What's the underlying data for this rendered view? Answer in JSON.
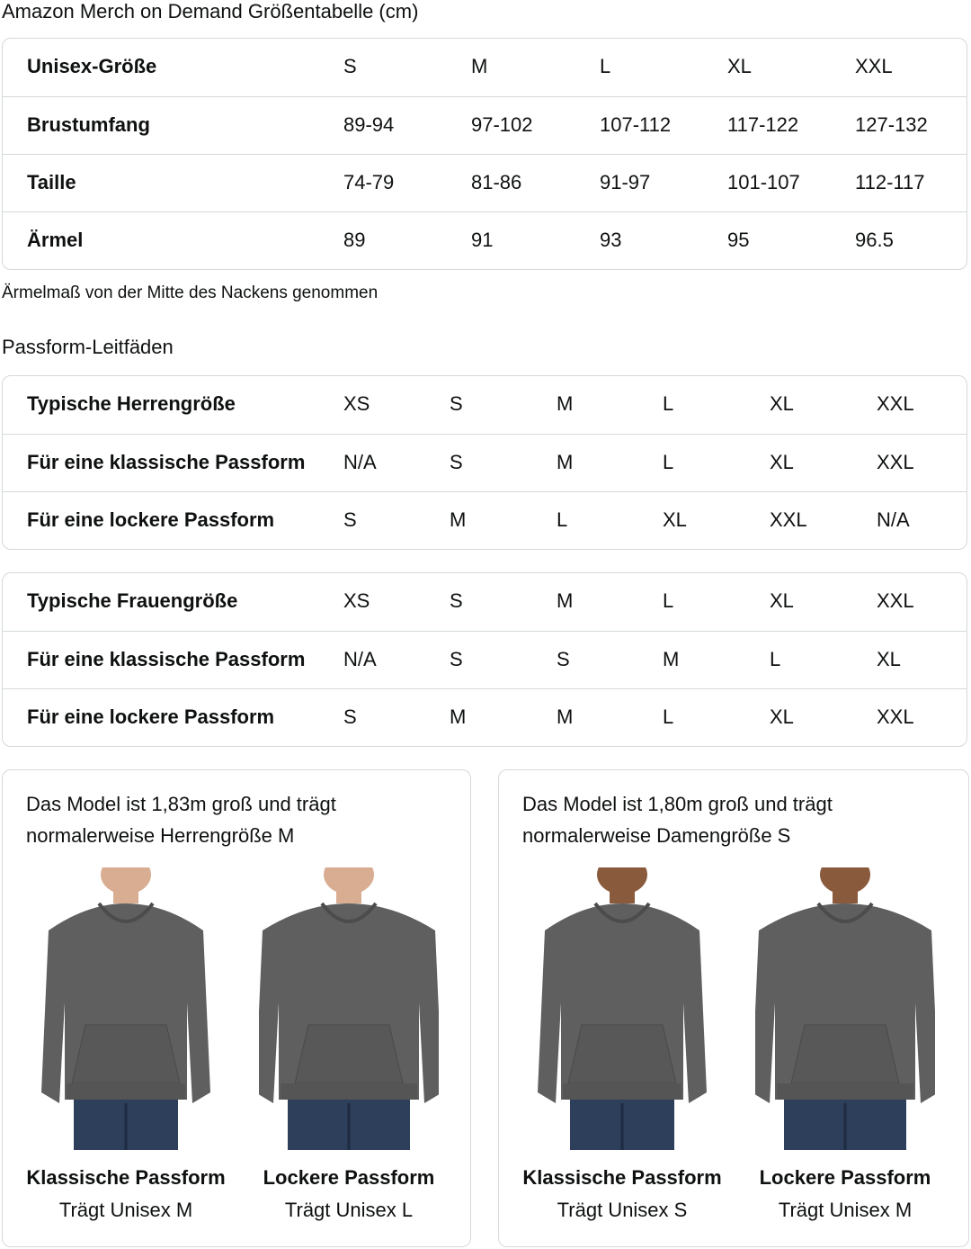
{
  "title": "Amazon Merch on Demand Größentabelle (cm)",
  "unisex_table": {
    "rows": [
      [
        "Unisex-Größe",
        "S",
        "M",
        "L",
        "XL",
        "XXL"
      ],
      [
        "Brustumfang",
        "89-94",
        "97-102",
        "107-112",
        "117-122",
        "127-132"
      ],
      [
        "Taille",
        "74-79",
        "81-86",
        "91-97",
        "101-107",
        "112-117"
      ],
      [
        "Ärmel",
        "89",
        "91",
        "93",
        "95",
        "96.5"
      ]
    ]
  },
  "sleeve_note": "Ärmelmaß von der Mitte des Nackens genommen",
  "fit_guides_heading": "Passform-Leitfäden",
  "men_table": {
    "rows": [
      [
        "Typische Herrengröße",
        "XS",
        "S",
        "M",
        "L",
        "XL",
        "XXL"
      ],
      [
        "Für eine klassische Passform",
        "N/A",
        "S",
        "M",
        "L",
        "XL",
        "XXL"
      ],
      [
        "Für eine lockere Passform",
        "S",
        "M",
        "L",
        "XL",
        "XXL",
        "N/A"
      ]
    ]
  },
  "women_table": {
    "rows": [
      [
        "Typische Frauengröße",
        "XS",
        "S",
        "M",
        "L",
        "XL",
        "XXL"
      ],
      [
        "Für eine klassische Passform",
        "N/A",
        "S",
        "S",
        "M",
        "L",
        "XL"
      ],
      [
        "Für eine lockere Passform",
        "S",
        "M",
        "M",
        "L",
        "XL",
        "XXL"
      ]
    ]
  },
  "cards": [
    {
      "text": "Das Model ist 1,83m groß und trägt normalerweise Herrengröße M",
      "figures": [
        {
          "fit": "Klassische Passform",
          "wears": "Trägt Unisex M"
        },
        {
          "fit": "Lockere Passform",
          "wears": "Trägt Unisex L"
        }
      ]
    },
    {
      "text": "Das Model ist 1,80m groß und trägt normalerweise Damengröße S",
      "figures": [
        {
          "fit": "Klassische Passform",
          "wears": "Trägt Unisex S"
        },
        {
          "fit": "Lockere Passform",
          "wears": "Trägt Unisex M"
        }
      ]
    }
  ],
  "colors": {
    "border": "#d5d9d9",
    "hoodie": "#5f5f5f",
    "jeans": "#2e3f5c"
  }
}
